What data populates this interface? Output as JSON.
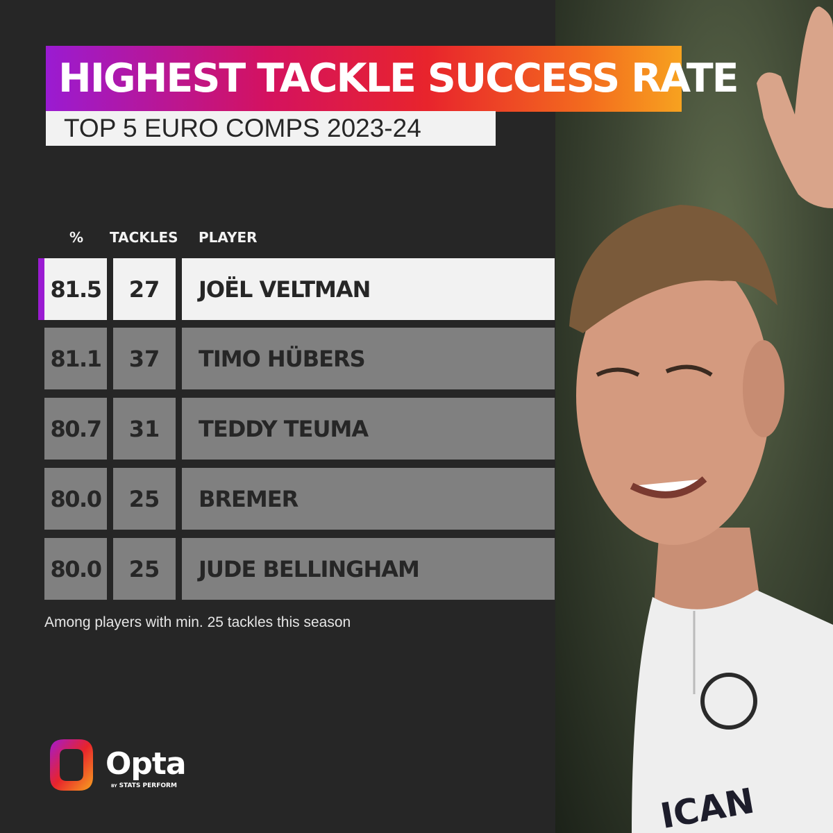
{
  "header": {
    "title": "HIGHEST TACKLE SUCCESS RATE",
    "subtitle": "TOP 5 EURO COMPS 2023-24"
  },
  "chart_data": {
    "type": "table",
    "title": "HIGHEST TACKLE SUCCESS RATE",
    "subtitle": "TOP 5 EURO COMPS 2023-24",
    "columns": [
      "%",
      "TACKLES",
      "PLAYER"
    ],
    "rows": [
      {
        "pct": "81.5",
        "tackles": "27",
        "player": "JOËL VELTMAN",
        "highlighted": true
      },
      {
        "pct": "81.1",
        "tackles": "37",
        "player": "TIMO HÜBERS",
        "highlighted": false
      },
      {
        "pct": "80.7",
        "tackles": "31",
        "player": "TEDDY TEUMA",
        "highlighted": false
      },
      {
        "pct": "80.0",
        "tackles": "25",
        "player": "BREMER",
        "highlighted": false
      },
      {
        "pct": "80.0",
        "tackles": "25",
        "player": "JUDE BELLINGHAM",
        "highlighted": false
      }
    ],
    "footnote": "Among players with min. 25 tackles this season"
  },
  "colors": {
    "background": "#262626",
    "highlight_row": "#f2f2f2",
    "other_row": "#808080",
    "accent": "#9a1bd2",
    "gradient": [
      "#9a1bd2",
      "#d4125f",
      "#e8242c",
      "#f36b1e",
      "#f7a21f"
    ]
  },
  "logo": {
    "name": "Opta",
    "tagline_prefix": "BY",
    "tagline": "STATS PERFORM"
  },
  "photo": {
    "icon": "player-photo",
    "kit_text": "ICAN"
  }
}
